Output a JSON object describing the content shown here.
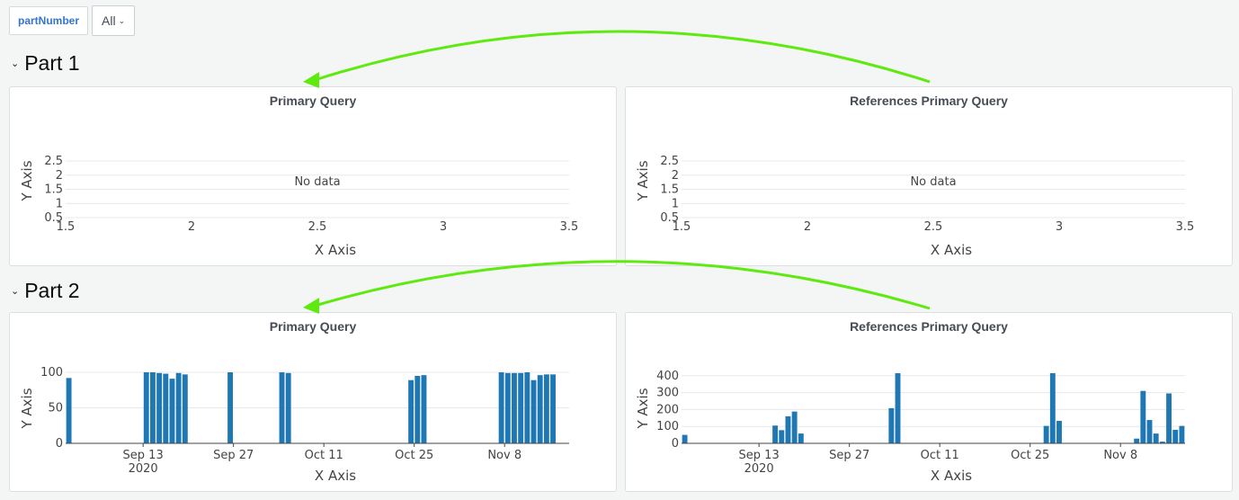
{
  "variables": {
    "label": "partNumber",
    "selected": "All"
  },
  "rows": [
    {
      "title": "Part 1",
      "panels": [
        {
          "title": "Primary Query",
          "empty_text": "No data",
          "xlabel": "X Axis",
          "ylabel": "Y Axis"
        },
        {
          "title": "References Primary Query",
          "empty_text": "No data",
          "xlabel": "X Axis",
          "ylabel": "Y Axis"
        }
      ]
    },
    {
      "title": "Part 2",
      "panels": [
        {
          "title": "Primary Query",
          "xlabel": "X Axis",
          "ylabel": "Y Axis"
        },
        {
          "title": "References Primary Query",
          "xlabel": "X Axis",
          "ylabel": "Y Axis"
        }
      ]
    }
  ],
  "colors": {
    "bar": "#1f77b4",
    "arrow": "#5ee90f",
    "link": "#3274d9"
  },
  "chart_data": [
    {
      "type": "bar",
      "panel": "Part 1 - Primary Query",
      "empty": true,
      "xlabel": "X Axis",
      "ylabel": "Y Axis",
      "xlim": [
        1.5,
        3.5
      ],
      "ylim": [
        0.5,
        2.5
      ],
      "xticks": [
        "1.5",
        "2",
        "2.5",
        "3",
        "3.5"
      ],
      "yticks": [
        "0.5",
        "1",
        "1.5",
        "2",
        "2.5"
      ],
      "series": []
    },
    {
      "type": "bar",
      "panel": "Part 1 - References Primary Query",
      "empty": true,
      "xlabel": "X Axis",
      "ylabel": "Y Axis",
      "xlim": [
        1.5,
        3.5
      ],
      "ylim": [
        0.5,
        2.5
      ],
      "xticks": [
        "1.5",
        "2",
        "2.5",
        "3",
        "3.5"
      ],
      "yticks": [
        "0.5",
        "1",
        "1.5",
        "2",
        "2.5"
      ],
      "series": []
    },
    {
      "type": "bar",
      "panel": "Part 2 - Primary Query",
      "xlabel": "X Axis",
      "ylabel": "Y Axis",
      "xlim": [
        "2020-09-01",
        "2020-11-17"
      ],
      "ylim": [
        0,
        100
      ],
      "yticks": [
        "0",
        "50",
        "100"
      ],
      "xticks": [
        {
          "date": "2020-09-13",
          "label": "Sep 13",
          "sub": "2020"
        },
        {
          "date": "2020-09-27",
          "label": "Sep 27"
        },
        {
          "date": "2020-10-11",
          "label": "Oct 11"
        },
        {
          "date": "2020-10-25",
          "label": "Oct 25"
        },
        {
          "date": "2020-11-08",
          "label": "Nov 8"
        }
      ],
      "x": [
        "2020-09-01",
        "2020-09-13",
        "2020-09-14",
        "2020-09-15",
        "2020-09-16",
        "2020-09-17",
        "2020-09-18",
        "2020-09-19",
        "2020-09-26",
        "2020-10-04",
        "2020-10-05",
        "2020-10-24",
        "2020-10-25",
        "2020-10-26",
        "2020-11-07",
        "2020-11-08",
        "2020-11-09",
        "2020-11-10",
        "2020-11-11",
        "2020-11-12",
        "2020-11-13",
        "2020-11-14",
        "2020-11-15"
      ],
      "values": [
        92,
        100,
        100,
        99,
        98,
        91,
        99,
        97,
        100,
        100,
        99,
        89,
        95,
        96,
        100,
        99,
        99,
        99,
        100,
        89,
        96,
        97,
        97
      ]
    },
    {
      "type": "bar",
      "panel": "Part 2 - References Primary Query",
      "xlabel": "X Axis",
      "ylabel": "Y Axis",
      "xlim": [
        "2020-09-01",
        "2020-11-17"
      ],
      "ylim": [
        0,
        420
      ],
      "yticks": [
        "0",
        "100",
        "200",
        "300",
        "400"
      ],
      "xticks": [
        {
          "date": "2020-09-13",
          "label": "Sep 13",
          "sub": "2020"
        },
        {
          "date": "2020-09-27",
          "label": "Sep 27"
        },
        {
          "date": "2020-10-11",
          "label": "Oct 11"
        },
        {
          "date": "2020-10-25",
          "label": "Oct 25"
        },
        {
          "date": "2020-11-08",
          "label": "Nov 8"
        }
      ],
      "x": [
        "2020-09-01",
        "2020-09-15",
        "2020-09-16",
        "2020-09-17",
        "2020-09-18",
        "2020-09-19",
        "2020-10-03",
        "2020-10-04",
        "2020-10-27",
        "2020-10-28",
        "2020-10-29",
        "2020-11-10",
        "2020-11-11",
        "2020-11-12",
        "2020-11-13",
        "2020-11-14",
        "2020-11-15",
        "2020-11-16",
        "2020-11-17"
      ],
      "values": [
        50,
        105,
        78,
        160,
        188,
        58,
        208,
        415,
        103,
        415,
        133,
        28,
        310,
        138,
        58,
        10,
        295,
        80,
        103
      ]
    }
  ]
}
